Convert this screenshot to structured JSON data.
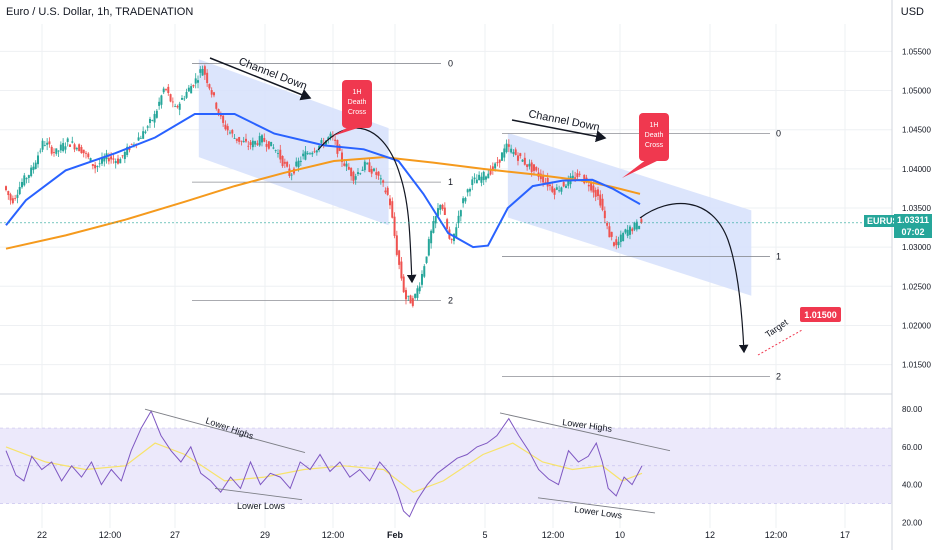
{
  "header": {
    "title": "Euro / U.S. Dollar, 1h, TRADENATION"
  },
  "currency": "USD",
  "price_tag": {
    "symbol": "EURUSD",
    "price": "1.03311",
    "countdown": "07:02"
  },
  "colors": {
    "up": "#26a69a",
    "down": "#ef5350",
    "ma_fast": "#2962ff",
    "ma_slow": "#f59a1d",
    "channel": "#d6e1fb",
    "callout": "#f0384f",
    "rsi": "#7e57c2",
    "rsi_ma": "#f7e36b",
    "rsi_band": "#ece9fb",
    "annotation": "#131722",
    "grid": "#eef0f3"
  },
  "annotations": {
    "channel_1": "Channel Down",
    "channel_2": "Channel Down",
    "death_cross_1": [
      "1H",
      "Death",
      "Cross"
    ],
    "death_cross_2": [
      "1H",
      "Death",
      "Cross"
    ],
    "fib_levels": [
      "0",
      "1",
      "2"
    ],
    "target_label": "Target",
    "target_value": "1.01500",
    "rsi_lower_highs_1": "Lower Highs",
    "rsi_lower_lows_1": "Lower Lows",
    "rsi_lower_highs_2": "Lower Highs",
    "rsi_lower_lows_2": "Lower Lows"
  },
  "chart_data": [
    {
      "type": "candlestick",
      "title": "Euro / U.S. Dollar, 1h, TRADENATION",
      "y_axis_labels": [
        "1.05500",
        "1.05000",
        "1.04500",
        "1.04000",
        "1.03500",
        "1.03000",
        "1.02500",
        "1.02000",
        "1.01500"
      ],
      "ylim": [
        1.0115,
        1.0585
      ],
      "x_axis_labels": [
        "22",
        "12:00",
        "27",
        "29",
        "12:00",
        "Feb",
        "5",
        "12:00",
        "10",
        "12",
        "12:00",
        "17"
      ],
      "price_path": [
        [
          0,
          1.0378
        ],
        [
          8,
          1.0358
        ],
        [
          18,
          1.0382
        ],
        [
          28,
          1.0398
        ],
        [
          40,
          1.0435
        ],
        [
          52,
          1.042
        ],
        [
          64,
          1.0435
        ],
        [
          78,
          1.0425
        ],
        [
          92,
          1.0402
        ],
        [
          104,
          1.0415
        ],
        [
          116,
          1.041
        ],
        [
          128,
          1.043
        ],
        [
          140,
          1.0445
        ],
        [
          152,
          1.0468
        ],
        [
          162,
          1.0505
        ],
        [
          172,
          1.0475
        ],
        [
          184,
          1.0498
        ],
        [
          194,
          1.0515
        ],
        [
          200,
          1.053
        ],
        [
          210,
          1.0495
        ],
        [
          220,
          1.0458
        ],
        [
          232,
          1.044
        ],
        [
          246,
          1.043
        ],
        [
          260,
          1.0438
        ],
        [
          274,
          1.0424
        ],
        [
          288,
          1.0392
        ],
        [
          302,
          1.0418
        ],
        [
          316,
          1.0428
        ],
        [
          330,
          1.0442
        ],
        [
          340,
          1.0412
        ],
        [
          352,
          1.039
        ],
        [
          364,
          1.0405
        ],
        [
          376,
          1.0392
        ],
        [
          388,
          1.0362
        ],
        [
          396,
          1.029
        ],
        [
          404,
          1.0235
        ],
        [
          412,
          1.023
        ],
        [
          420,
          1.026
        ],
        [
          430,
          1.0318
        ],
        [
          440,
          1.036
        ],
        [
          450,
          1.03
        ],
        [
          460,
          1.0352
        ],
        [
          470,
          1.0382
        ],
        [
          482,
          1.039
        ],
        [
          494,
          1.0402
        ],
        [
          506,
          1.0428
        ],
        [
          518,
          1.0415
        ],
        [
          530,
          1.0402
        ],
        [
          542,
          1.0388
        ],
        [
          554,
          1.0372
        ],
        [
          566,
          1.0382
        ],
        [
          578,
          1.0392
        ],
        [
          590,
          1.038
        ],
        [
          600,
          1.036
        ],
        [
          608,
          1.032
        ],
        [
          616,
          1.03
        ],
        [
          624,
          1.0318
        ],
        [
          632,
          1.0324
        ],
        [
          640,
          1.0331
        ]
      ],
      "ma_fast": {
        "name": "",
        "path": [
          [
            0,
            1.0328
          ],
          [
            20,
            1.036
          ],
          [
            60,
            1.0398
          ],
          [
            110,
            1.042
          ],
          [
            150,
            1.044
          ],
          [
            190,
            1.047
          ],
          [
            230,
            1.047
          ],
          [
            270,
            1.0445
          ],
          [
            320,
            1.043
          ],
          [
            360,
            1.0425
          ],
          [
            395,
            1.041
          ],
          [
            420,
            1.0368
          ],
          [
            445,
            1.0318
          ],
          [
            470,
            1.03
          ],
          [
            485,
            1.0302
          ],
          [
            505,
            1.035
          ],
          [
            530,
            1.0378
          ],
          [
            560,
            1.0385
          ],
          [
            590,
            1.0386
          ],
          [
            610,
            1.0375
          ],
          [
            638,
            1.0355
          ]
        ]
      },
      "ma_slow": {
        "name": "",
        "path": [
          [
            0,
            1.0298
          ],
          [
            60,
            1.0315
          ],
          [
            120,
            1.0335
          ],
          [
            180,
            1.0358
          ],
          [
            230,
            1.0378
          ],
          [
            280,
            1.0395
          ],
          [
            330,
            1.041
          ],
          [
            380,
            1.0415
          ],
          [
            430,
            1.0408
          ],
          [
            480,
            1.04
          ],
          [
            530,
            1.0393
          ],
          [
            580,
            1.0385
          ],
          [
            610,
            1.0377
          ],
          [
            638,
            1.0368
          ]
        ]
      },
      "fib_levels_1": {
        "0": 1.05345,
        "1": 1.0383,
        "2": 1.0232
      },
      "fib_levels_2": {
        "0": 1.0445,
        "1": 1.0288,
        "2": 1.0135
      },
      "target": 1.015
    },
    {
      "type": "line",
      "title": "",
      "y_axis_labels": [
        "80.00",
        "60.00",
        "40.00",
        "20.00"
      ],
      "ylim": [
        17,
        87
      ],
      "band": [
        30,
        70
      ],
      "rsi_path": [
        [
          0,
          58
        ],
        [
          10,
          45
        ],
        [
          18,
          42
        ],
        [
          26,
          55
        ],
        [
          36,
          48
        ],
        [
          46,
          52
        ],
        [
          56,
          42
        ],
        [
          66,
          50
        ],
        [
          76,
          44
        ],
        [
          86,
          52
        ],
        [
          96,
          40
        ],
        [
          106,
          48
        ],
        [
          116,
          42
        ],
        [
          126,
          58
        ],
        [
          136,
          70
        ],
        [
          146,
          79
        ],
        [
          156,
          66
        ],
        [
          166,
          58
        ],
        [
          176,
          52
        ],
        [
          186,
          60
        ],
        [
          196,
          46
        ],
        [
          206,
          42
        ],
        [
          216,
          36
        ],
        [
          226,
          44
        ],
        [
          236,
          38
        ],
        [
          246,
          52
        ],
        [
          256,
          40
        ],
        [
          266,
          46
        ],
        [
          276,
          44
        ],
        [
          286,
          38
        ],
        [
          296,
          52
        ],
        [
          306,
          48
        ],
        [
          316,
          56
        ],
        [
          326,
          47
        ],
        [
          336,
          52
        ],
        [
          346,
          44
        ],
        [
          356,
          48
        ],
        [
          366,
          42
        ],
        [
          376,
          52
        ],
        [
          386,
          46
        ],
        [
          394,
          36
        ],
        [
          400,
          26
        ],
        [
          406,
          23
        ],
        [
          414,
          32
        ],
        [
          424,
          40
        ],
        [
          434,
          46
        ],
        [
          444,
          50
        ],
        [
          454,
          54
        ],
        [
          464,
          56
        ],
        [
          474,
          60
        ],
        [
          484,
          62
        ],
        [
          494,
          66
        ],
        [
          506,
          75
        ],
        [
          516,
          66
        ],
        [
          526,
          58
        ],
        [
          536,
          48
        ],
        [
          546,
          43
        ],
        [
          556,
          40
        ],
        [
          566,
          58
        ],
        [
          576,
          52
        ],
        [
          586,
          55
        ],
        [
          594,
          62
        ],
        [
          600,
          52
        ],
        [
          606,
          38
        ],
        [
          614,
          34
        ],
        [
          622,
          44
        ],
        [
          630,
          40
        ],
        [
          640,
          50
        ]
      ],
      "rsi_ma_path": [
        [
          0,
          60
        ],
        [
          40,
          52
        ],
        [
          80,
          48
        ],
        [
          120,
          50
        ],
        [
          150,
          62
        ],
        [
          180,
          56
        ],
        [
          220,
          42
        ],
        [
          260,
          44
        ],
        [
          300,
          48
        ],
        [
          340,
          50
        ],
        [
          380,
          48
        ],
        [
          410,
          36
        ],
        [
          440,
          42
        ],
        [
          480,
          56
        ],
        [
          510,
          62
        ],
        [
          540,
          52
        ],
        [
          570,
          48
        ],
        [
          600,
          50
        ],
        [
          620,
          42
        ],
        [
          640,
          46
        ]
      ]
    }
  ]
}
